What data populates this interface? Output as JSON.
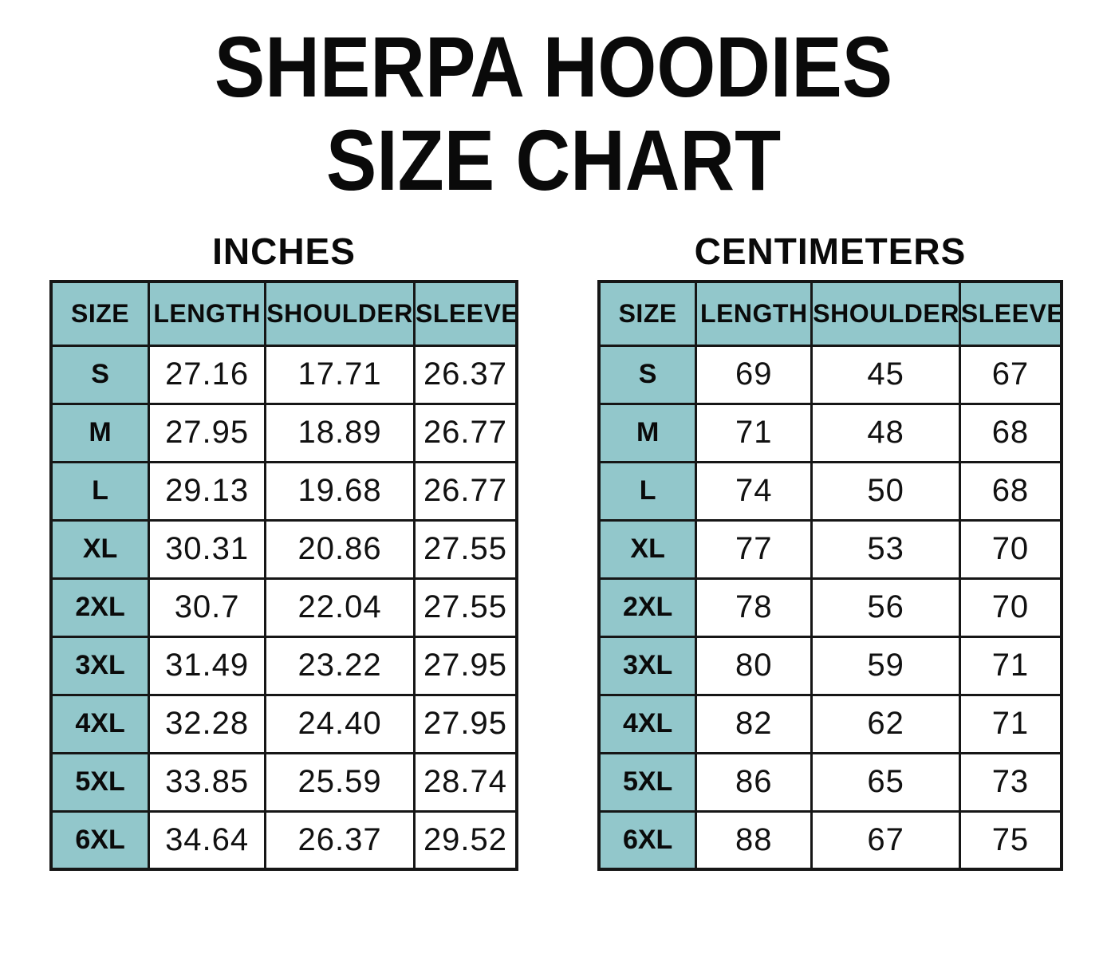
{
  "title": {
    "line1": "SHERPA HOODIES",
    "line2": "SIZE CHART"
  },
  "colors": {
    "header_bg": "#92C7CB",
    "border": "#161616",
    "text": "#0a0a0a",
    "background": "#ffffff"
  },
  "chart_data": [
    {
      "type": "table",
      "title": "INCHES",
      "columns": [
        "SIZE",
        "LENGTH",
        "SHOULDER",
        "SLEEVE"
      ],
      "rows": [
        [
          "S",
          "27.16",
          "17.71",
          "26.37"
        ],
        [
          "M",
          "27.95",
          "18.89",
          "26.77"
        ],
        [
          "L",
          "29.13",
          "19.68",
          "26.77"
        ],
        [
          "XL",
          "30.31",
          "20.86",
          "27.55"
        ],
        [
          "2XL",
          "30.7",
          "22.04",
          "27.55"
        ],
        [
          "3XL",
          "31.49",
          "23.22",
          "27.95"
        ],
        [
          "4XL",
          "32.28",
          "24.40",
          "27.95"
        ],
        [
          "5XL",
          "33.85",
          "25.59",
          "28.74"
        ],
        [
          "6XL",
          "34.64",
          "26.37",
          "29.52"
        ]
      ]
    },
    {
      "type": "table",
      "title": "CENTIMETERS",
      "columns": [
        "SIZE",
        "LENGTH",
        "SHOULDER",
        "SLEEVE"
      ],
      "rows": [
        [
          "S",
          "69",
          "45",
          "67"
        ],
        [
          "M",
          "71",
          "48",
          "68"
        ],
        [
          "L",
          "74",
          "50",
          "68"
        ],
        [
          "XL",
          "77",
          "53",
          "70"
        ],
        [
          "2XL",
          "78",
          "56",
          "70"
        ],
        [
          "3XL",
          "80",
          "59",
          "71"
        ],
        [
          "4XL",
          "82",
          "62",
          "71"
        ],
        [
          "5XL",
          "86",
          "65",
          "73"
        ],
        [
          "6XL",
          "88",
          "67",
          "75"
        ]
      ]
    }
  ]
}
